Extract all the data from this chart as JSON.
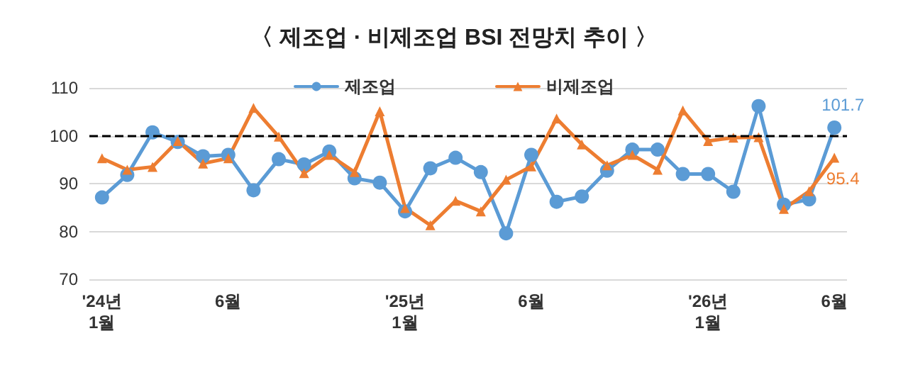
{
  "chart_data": {
    "type": "line",
    "title": "〈 제조업 · 비제조업 BSI 전망치 추이 〉",
    "categories": [
      "'24년\n1월",
      null,
      null,
      null,
      null,
      "6월",
      null,
      null,
      null,
      null,
      null,
      null,
      "'25년\n1월",
      null,
      null,
      null,
      null,
      "6월",
      null,
      null,
      null,
      null,
      null,
      null,
      "'26년\n1월",
      null,
      null,
      null,
      null,
      "6월"
    ],
    "series": [
      {
        "name": "제조업",
        "color": "#5b9bd5",
        "marker": "circle",
        "values": [
          87.1,
          91.8,
          100.7,
          98.7,
          95.7,
          96.0,
          88.6,
          95.1,
          94.0,
          96.7,
          91.1,
          90.2,
          84.2,
          93.2,
          95.4,
          92.4,
          79.6,
          96.0,
          86.2,
          87.3,
          92.7,
          97.1,
          97.1,
          92.0,
          92.0,
          88.3,
          106.2,
          85.6,
          86.7,
          101.7
        ],
        "value_labels": [
          null,
          null,
          null,
          null,
          null,
          null,
          null,
          null,
          null,
          null,
          null,
          null,
          null,
          null,
          null,
          null,
          null,
          null,
          null,
          null,
          null,
          null,
          null,
          null,
          null,
          null,
          null,
          null,
          null,
          "101.7"
        ]
      },
      {
        "name": "비제조업",
        "color": "#ed7d31",
        "marker": "triangle",
        "values": [
          95.3,
          92.9,
          93.5,
          98.9,
          94.2,
          95.3,
          105.8,
          99.8,
          92.2,
          96.0,
          92.4,
          105.1,
          84.9,
          81.3,
          86.4,
          84.2,
          90.8,
          93.6,
          103.6,
          98.2,
          93.8,
          96.0,
          92.9,
          105.3,
          98.9,
          99.6,
          99.7,
          84.7,
          88.4,
          95.4
        ],
        "value_labels": [
          null,
          null,
          null,
          null,
          null,
          null,
          null,
          null,
          null,
          null,
          null,
          null,
          null,
          null,
          null,
          null,
          null,
          null,
          null,
          null,
          null,
          null,
          null,
          null,
          null,
          null,
          null,
          null,
          null,
          "95.4"
        ]
      }
    ],
    "ylim": [
      70,
      110
    ],
    "yticks": [
      70,
      80,
      90,
      100,
      110
    ],
    "grid": "y",
    "legend": "top",
    "ref_lines": [
      {
        "axis": "y",
        "value": 100,
        "color": "#000000",
        "line_style": "dashed"
      }
    ]
  }
}
